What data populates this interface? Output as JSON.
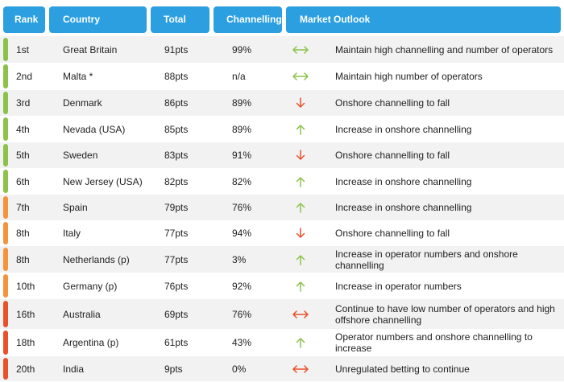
{
  "colors": {
    "header_bg": "#2b9fe0",
    "green": "#8bc34a",
    "orange": "#f5923e",
    "red": "#e8512a",
    "row_shade": "#f2f2f2"
  },
  "headers": {
    "rank": "Rank",
    "country": "Country",
    "total": "Total",
    "channelling": "Channelling",
    "outlook": "Market Outlook"
  },
  "rows": [
    {
      "rank": "1st",
      "country": "Great Britain",
      "total": "91pts",
      "channelling": "99%",
      "trend": "both",
      "trend_color": "green",
      "tier": "green",
      "outlook": "Maintain high channelling and number of operators"
    },
    {
      "rank": "2nd",
      "country": "Malta *",
      "total": "88pts",
      "channelling": "n/a",
      "trend": "both",
      "trend_color": "green",
      "tier": "green",
      "outlook": "Maintain high number of operators"
    },
    {
      "rank": "3rd",
      "country": "Denmark",
      "total": "86pts",
      "channelling": "89%",
      "trend": "down",
      "trend_color": "red",
      "tier": "green",
      "outlook": "Onshore channelling to fall"
    },
    {
      "rank": "4th",
      "country": "Nevada (USA)",
      "total": "85pts",
      "channelling": "89%",
      "trend": "up",
      "trend_color": "green",
      "tier": "green",
      "outlook": "Increase in onshore channelling"
    },
    {
      "rank": "5th",
      "country": "Sweden",
      "total": "83pts",
      "channelling": "91%",
      "trend": "down",
      "trend_color": "red",
      "tier": "green",
      "outlook": "Onshore channelling to fall"
    },
    {
      "rank": "6th",
      "country": "New Jersey (USA)",
      "total": "82pts",
      "channelling": "82%",
      "trend": "up",
      "trend_color": "green",
      "tier": "green",
      "outlook": "Increase in onshore channelling"
    },
    {
      "rank": "7th",
      "country": "Spain",
      "total": "79pts",
      "channelling": "76%",
      "trend": "up",
      "trend_color": "green",
      "tier": "orange",
      "outlook": "Increase in onshore channelling"
    },
    {
      "rank": "8th",
      "country": "Italy",
      "total": "77pts",
      "channelling": "94%",
      "trend": "down",
      "trend_color": "red",
      "tier": "orange",
      "outlook": "Onshore channelling to fall"
    },
    {
      "rank": "8th",
      "country": "Netherlands (p)",
      "total": "77pts",
      "channelling": "3%",
      "trend": "up",
      "trend_color": "green",
      "tier": "orange",
      "outlook": "Increase in operator numbers and onshore channelling"
    },
    {
      "rank": "10th",
      "country": "Germany (p)",
      "total": "76pts",
      "channelling": "92%",
      "trend": "up",
      "trend_color": "green",
      "tier": "orange",
      "outlook": "Increase in operator numbers"
    },
    {
      "rank": "16th",
      "country": "Australia",
      "total": "69pts",
      "channelling": "76%",
      "trend": "both",
      "trend_color": "red",
      "tier": "red",
      "outlook": "Continue to have low number of operators and high offshore channelling"
    },
    {
      "rank": "18th",
      "country": "Argentina (p)",
      "total": "61pts",
      "channelling": "43%",
      "trend": "up",
      "trend_color": "green",
      "tier": "red",
      "outlook": "Operator numbers and onshore channelling to increase"
    },
    {
      "rank": "20th",
      "country": "India",
      "total": "9pts",
      "channelling": "0%",
      "trend": "both",
      "trend_color": "red",
      "tier": "red",
      "outlook": "Unregulated betting to continue"
    }
  ]
}
